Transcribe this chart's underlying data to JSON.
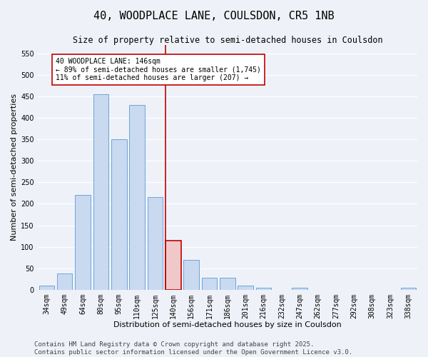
{
  "title": "40, WOODPLACE LANE, COULSDON, CR5 1NB",
  "subtitle": "Size of property relative to semi-detached houses in Coulsdon",
  "xlabel": "Distribution of semi-detached houses by size in Coulsdon",
  "ylabel": "Number of semi-detached properties",
  "categories": [
    "34sqm",
    "49sqm",
    "64sqm",
    "80sqm",
    "95sqm",
    "110sqm",
    "125sqm",
    "140sqm",
    "156sqm",
    "171sqm",
    "186sqm",
    "201sqm",
    "216sqm",
    "232sqm",
    "247sqm",
    "262sqm",
    "277sqm",
    "292sqm",
    "308sqm",
    "323sqm",
    "338sqm"
  ],
  "values": [
    10,
    38,
    220,
    455,
    350,
    430,
    215,
    115,
    70,
    28,
    28,
    9,
    5,
    0,
    5,
    0,
    0,
    0,
    0,
    0,
    4
  ],
  "bar_color": "#c9d9f0",
  "bar_edge_color": "#5b9bd5",
  "highlight_bar_index": 7,
  "highlight_bar_color": "#f0c8c8",
  "highlight_bar_edge_color": "#c00000",
  "vline_color": "#c00000",
  "annotation_text": "40 WOODPLACE LANE: 146sqm\n← 89% of semi-detached houses are smaller (1,745)\n11% of semi-detached houses are larger (207) →",
  "annotation_box_color": "#ffffff",
  "annotation_box_edge_color": "#c00000",
  "ylim": [
    0,
    570
  ],
  "yticks": [
    0,
    50,
    100,
    150,
    200,
    250,
    300,
    350,
    400,
    450,
    500,
    550
  ],
  "footer_text": "Contains HM Land Registry data © Crown copyright and database right 2025.\nContains public sector information licensed under the Open Government Licence v3.0.",
  "background_color": "#eef2f8",
  "grid_color": "#ffffff",
  "title_fontsize": 11,
  "subtitle_fontsize": 8.5,
  "axis_label_fontsize": 8,
  "tick_fontsize": 7,
  "annotation_fontsize": 7,
  "footer_fontsize": 6.5
}
